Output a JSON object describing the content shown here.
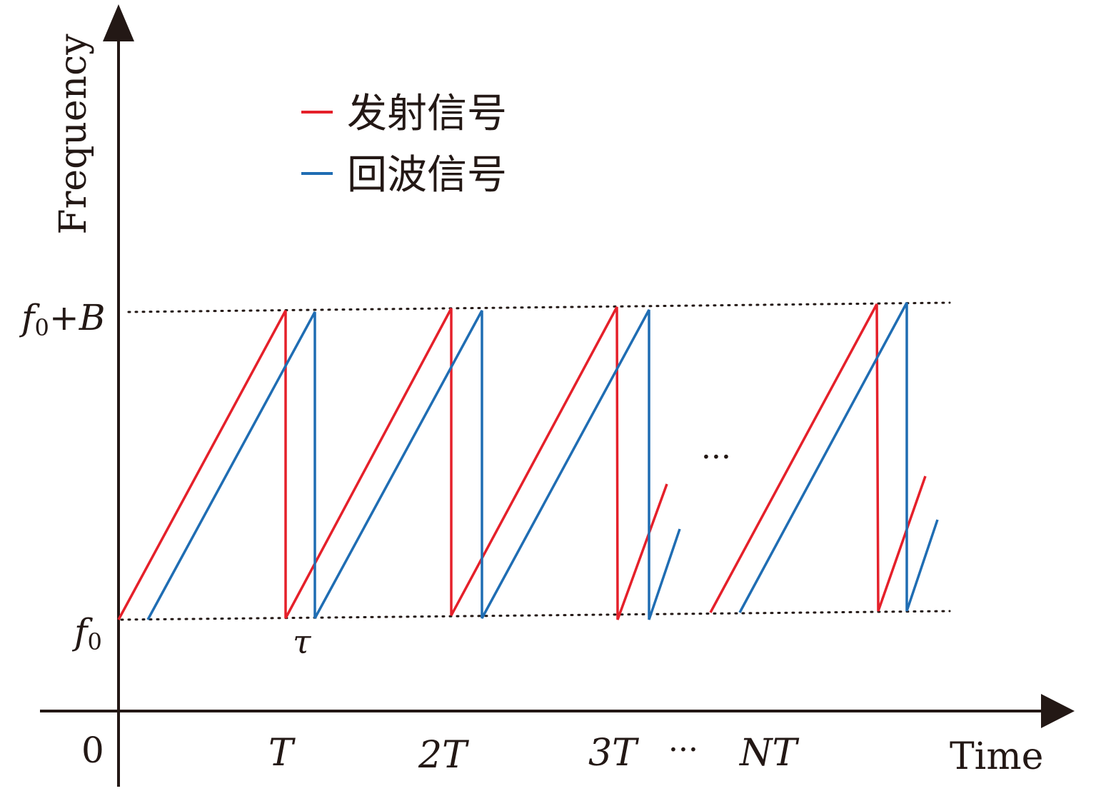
{
  "axes": {
    "y_label": "Frequency",
    "x_label": "Time",
    "origin": "0",
    "y_ticks": {
      "top": "f",
      "top_sub": "0",
      "top_suffix": "+B",
      "bottom": "f",
      "bottom_sub": "0"
    },
    "x_ticks": [
      "T",
      "2T",
      "3T",
      "···",
      "NT"
    ],
    "delay_label": "τ",
    "ellipsis": "···"
  },
  "legend": [
    {
      "label": "发射信号",
      "color": "#e5202a"
    },
    {
      "label": "回波信号",
      "color": "#1f6db3"
    }
  ],
  "colors": {
    "axis": "#231815",
    "transmit": "#e5202a",
    "echo": "#1f6db3"
  }
}
